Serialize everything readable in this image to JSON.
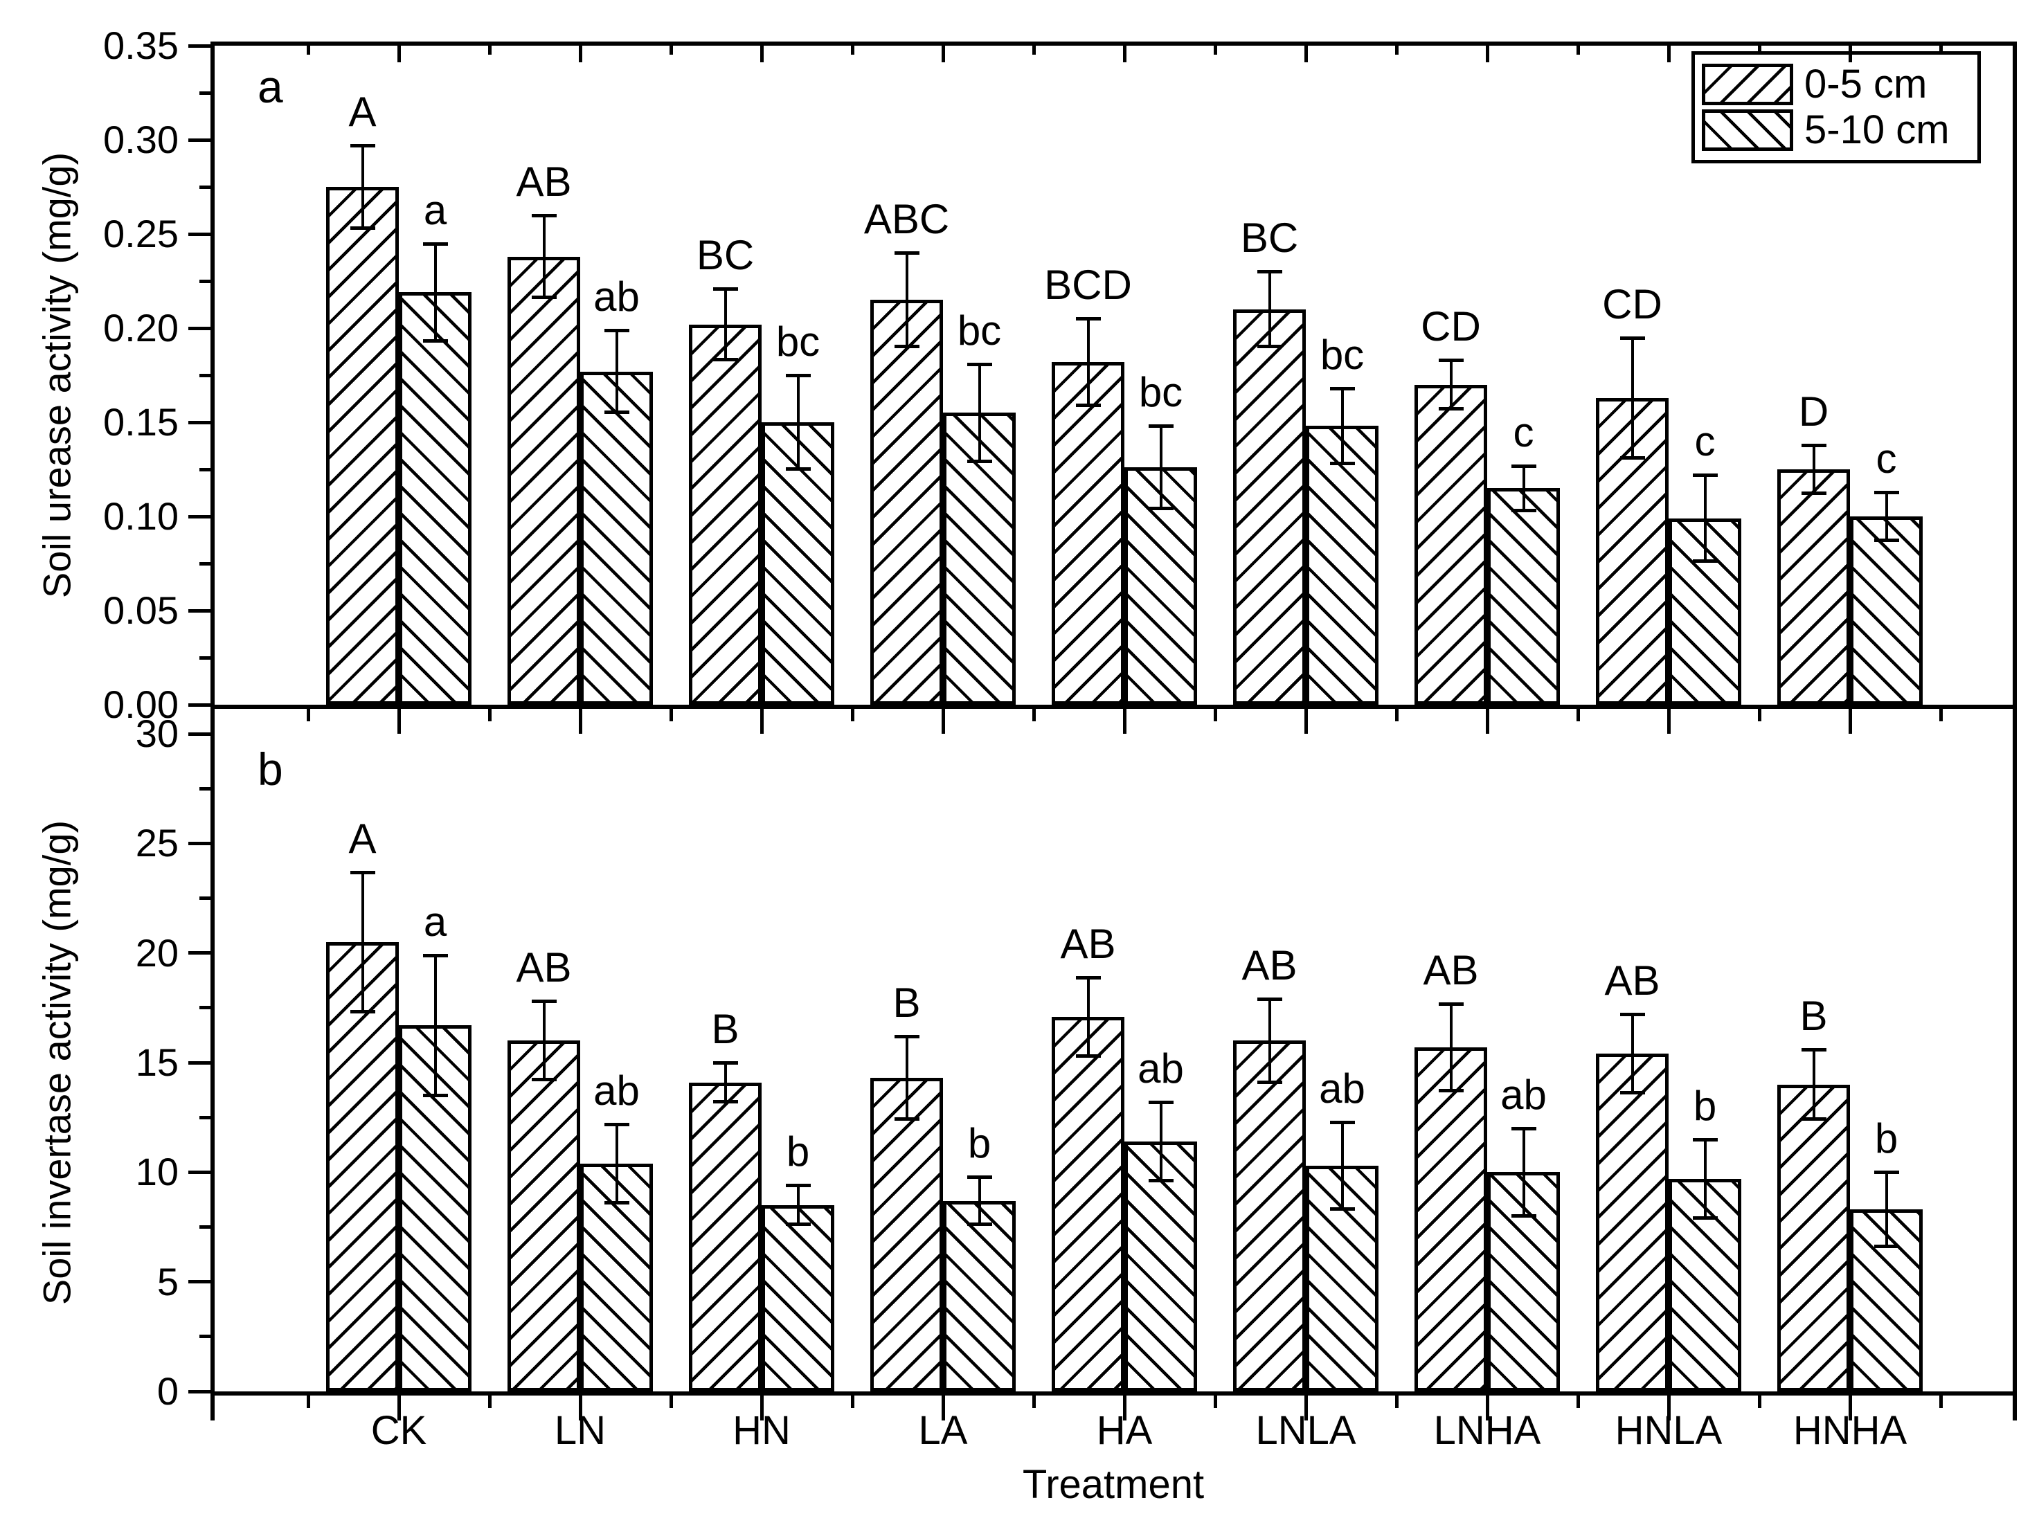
{
  "figure": {
    "xlabel": "Treatment",
    "background_color": "#ffffff",
    "ink_color": "#000000",
    "panels": [
      "a",
      "b"
    ]
  },
  "legend": {
    "position": "top-right-of-panel-a",
    "items": [
      {
        "label": "0-5 cm",
        "hatch": "/"
      },
      {
        "label": "5-10 cm",
        "hatch": "\\"
      }
    ]
  },
  "chart_data": [
    {
      "type": "bar",
      "panel_label": "a",
      "ylabel": "Soil urease activity (mg/g)",
      "ylim": [
        0,
        0.35
      ],
      "ytick_labels": [
        "0.00",
        "0.05",
        "0.10",
        "0.15",
        "0.20",
        "0.25",
        "0.30",
        "0.35"
      ],
      "grid": false,
      "legend_position": "top-right",
      "categories": [
        "CK",
        "LN",
        "HN",
        "LA",
        "HA",
        "LNLA",
        "LNHA",
        "HNLA",
        "HNHA"
      ],
      "series": [
        {
          "name": "0-5 cm",
          "hatch": "/",
          "values": [
            0.275,
            0.238,
            0.202,
            0.215,
            0.182,
            0.21,
            0.17,
            0.163,
            0.125
          ],
          "errors": [
            0.022,
            0.022,
            0.019,
            0.025,
            0.023,
            0.02,
            0.013,
            0.032,
            0.013
          ],
          "sig_letters": [
            "A",
            "AB",
            "BC",
            "ABC",
            "BCD",
            "BC",
            "CD",
            "CD",
            "D"
          ]
        },
        {
          "name": "5-10 cm",
          "hatch": "\\",
          "values": [
            0.219,
            0.177,
            0.15,
            0.155,
            0.126,
            0.148,
            0.115,
            0.099,
            0.1
          ],
          "errors": [
            0.026,
            0.022,
            0.025,
            0.026,
            0.022,
            0.02,
            0.012,
            0.023,
            0.013
          ],
          "sig_letters": [
            "a",
            "ab",
            "bc",
            "bc",
            "bc",
            "bc",
            "c",
            "c",
            "c"
          ]
        }
      ]
    },
    {
      "type": "bar",
      "panel_label": "b",
      "ylabel": "Soil invertase activity (mg/g)",
      "xlabel": "Treatment",
      "ylim": [
        0,
        30
      ],
      "ytick_labels": [
        "0",
        "5",
        "10",
        "15",
        "20",
        "25",
        "30"
      ],
      "grid": false,
      "categories": [
        "CK",
        "LN",
        "HN",
        "LA",
        "HA",
        "LNLA",
        "LNHA",
        "HNLA",
        "HNHA"
      ],
      "series": [
        {
          "name": "0-5 cm",
          "hatch": "/",
          "values": [
            20.5,
            16.0,
            14.1,
            14.3,
            17.1,
            16.0,
            15.7,
            15.4,
            14.0
          ],
          "errors": [
            3.2,
            1.8,
            0.9,
            1.9,
            1.8,
            1.9,
            2.0,
            1.8,
            1.6
          ],
          "sig_letters": [
            "A",
            "AB",
            "B",
            "B",
            "AB",
            "AB",
            "AB",
            "AB",
            "B"
          ]
        },
        {
          "name": "5-10 cm",
          "hatch": "\\",
          "values": [
            16.7,
            10.4,
            8.5,
            8.7,
            11.4,
            10.3,
            10.0,
            9.7,
            8.3
          ],
          "errors": [
            3.2,
            1.8,
            0.9,
            1.1,
            1.8,
            2.0,
            2.0,
            1.8,
            1.7
          ],
          "sig_letters": [
            "a",
            "ab",
            "b",
            "b",
            "ab",
            "ab",
            "ab",
            "b",
            "b"
          ]
        }
      ]
    }
  ]
}
